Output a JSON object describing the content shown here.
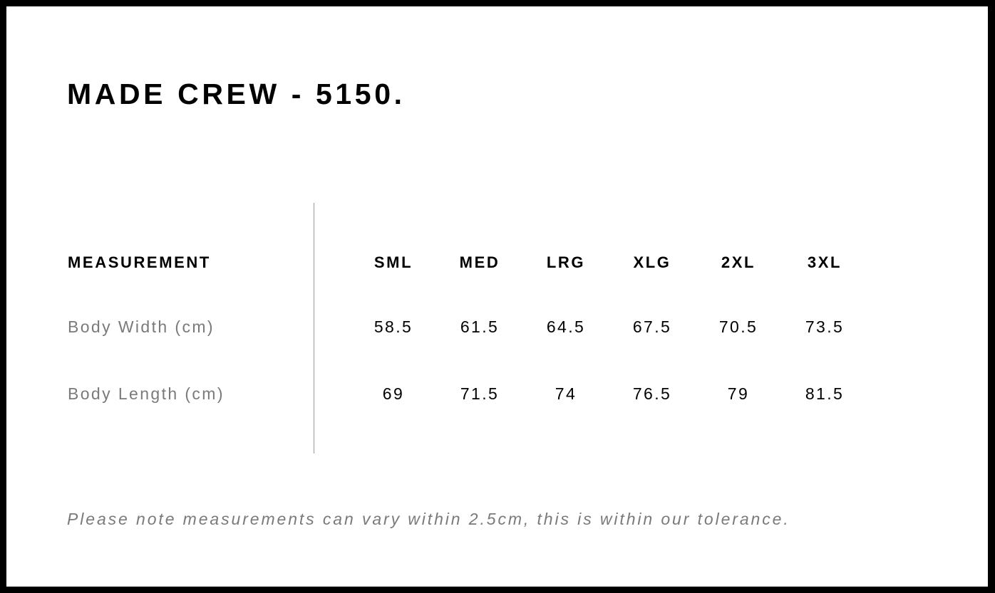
{
  "title": "MADE CREW - 5150.",
  "table": {
    "header_label": "MEASUREMENT",
    "sizes": [
      "SML",
      "MED",
      "LRG",
      "XLG",
      "2XL",
      "3XL"
    ],
    "rows": [
      {
        "label": "Body Width (cm)",
        "values": [
          "58.5",
          "61.5",
          "64.5",
          "67.5",
          "70.5",
          "73.5"
        ]
      },
      {
        "label": "Body Length (cm)",
        "values": [
          "69",
          "71.5",
          "74",
          "76.5",
          "79",
          "81.5"
        ]
      }
    ]
  },
  "note": "Please note measurements can vary within 2.5cm, this is within our tolerance.",
  "colors": {
    "frame": "#000000",
    "text": "#000000",
    "muted": "#7a7a7a",
    "divider": "#999999"
  }
}
